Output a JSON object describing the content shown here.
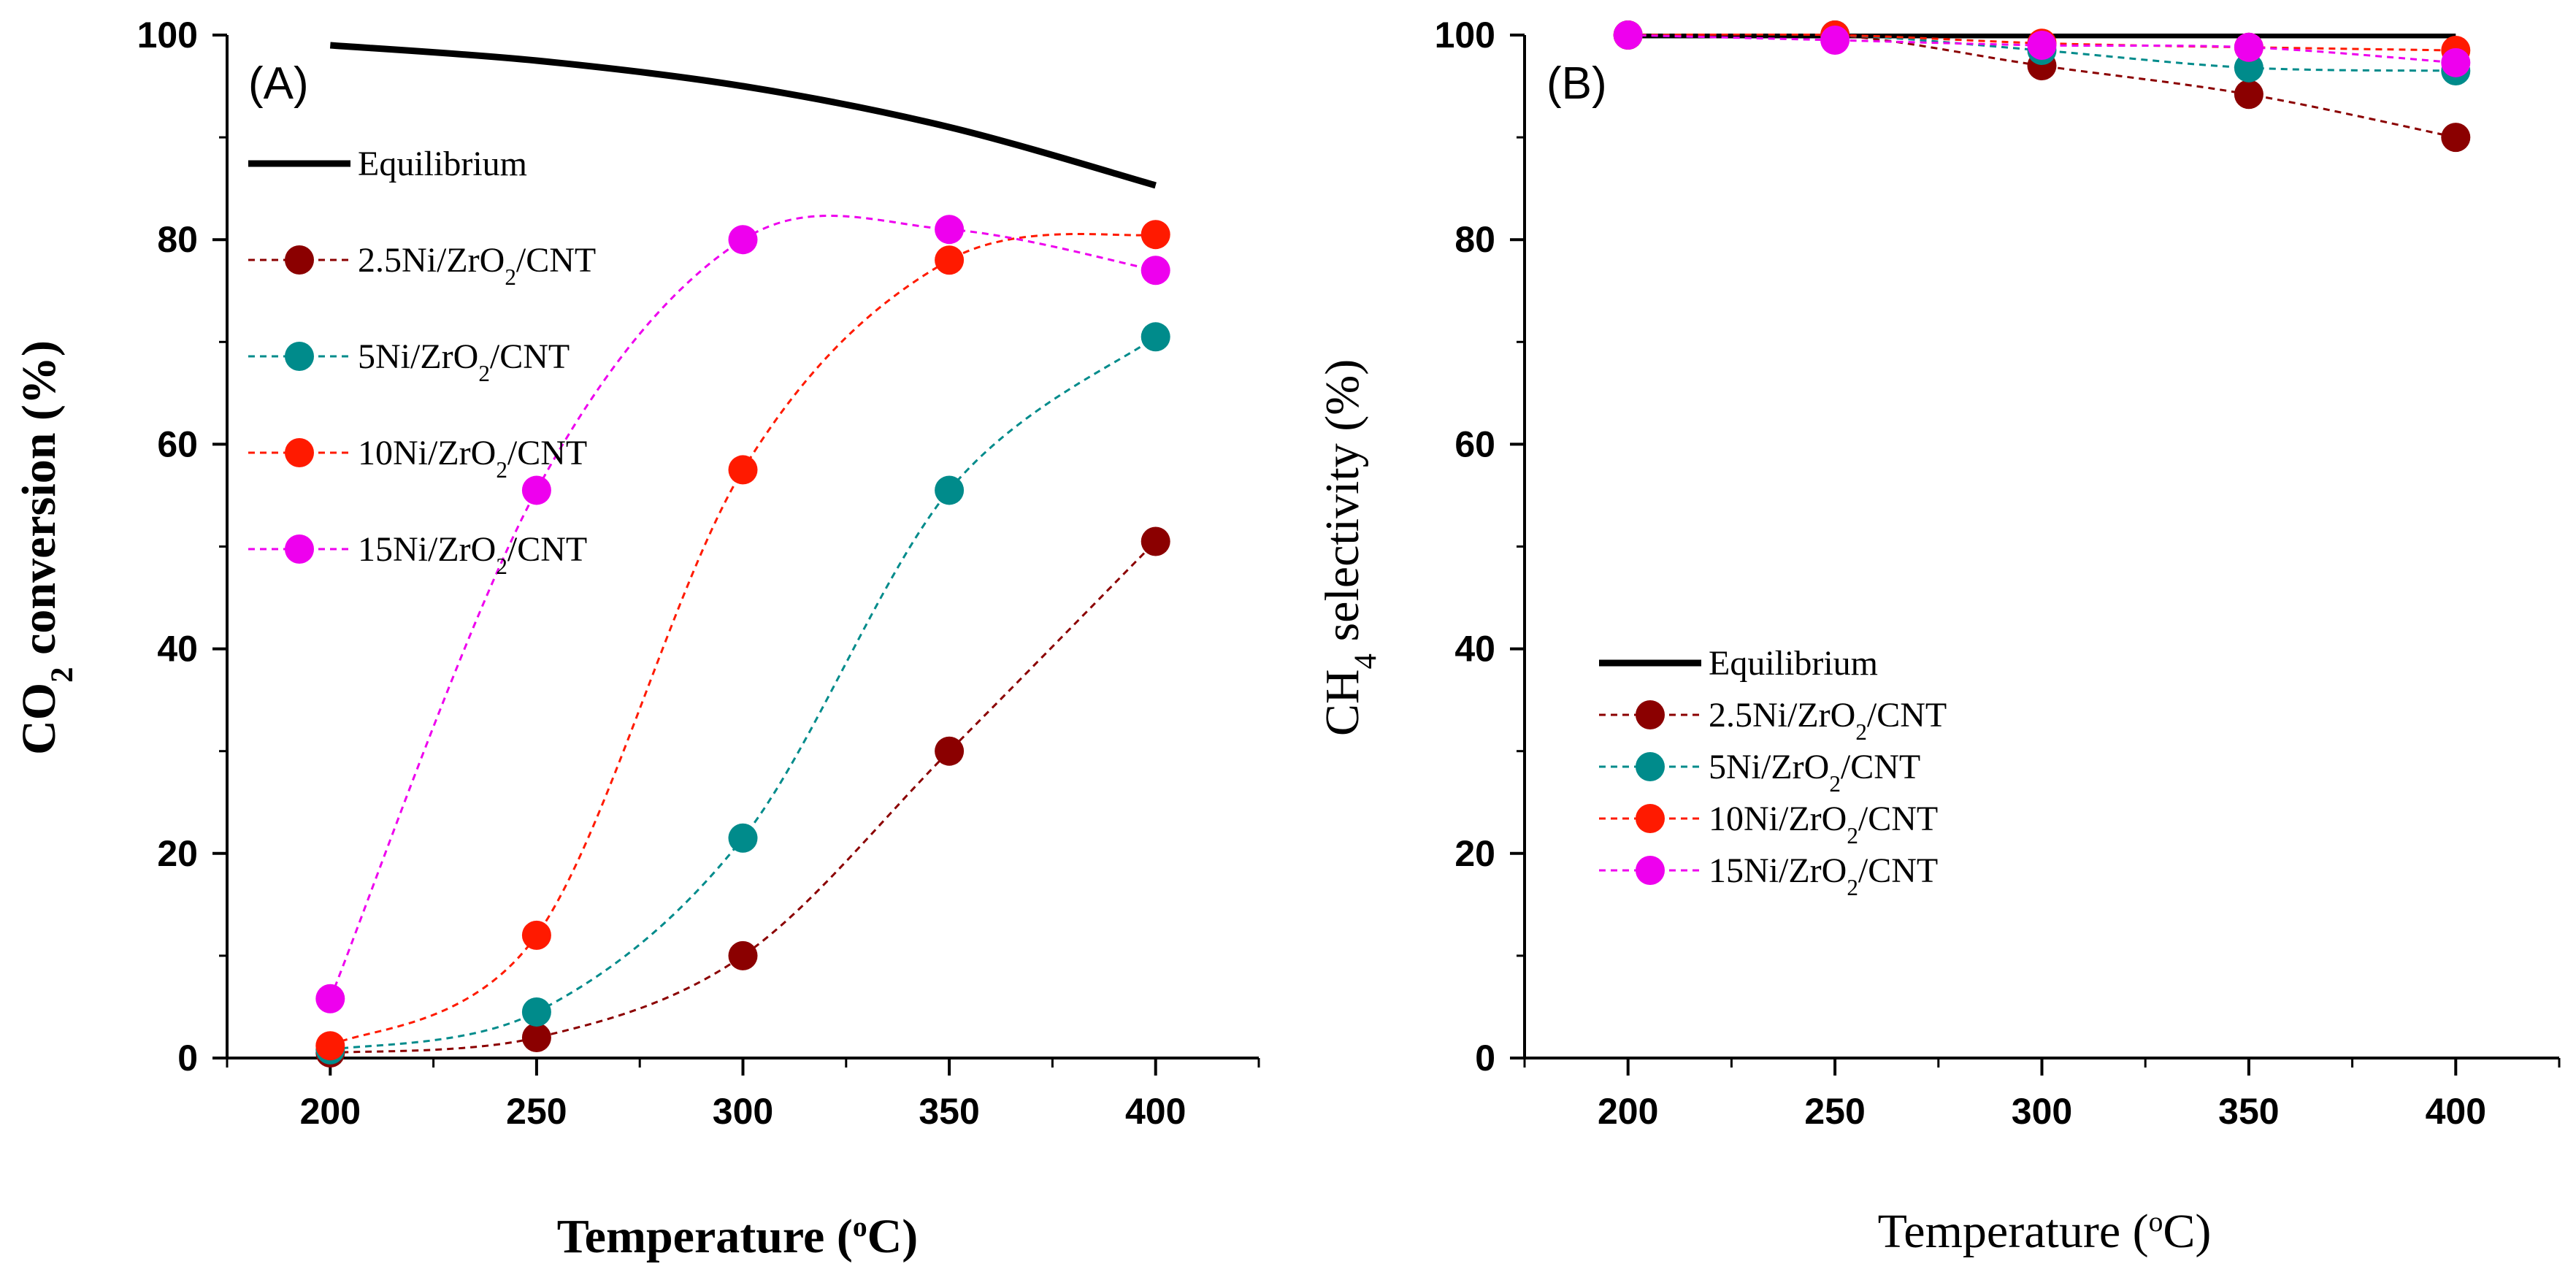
{
  "chart_data": [
    {
      "type": "line",
      "panel_label": "(A)",
      "xlabel": "Temperature (°C)",
      "ylabel": "CO2 conversion (%)",
      "ylabel_parts": {
        "pre": "CO",
        "sub": "2",
        "post": " conversion (%)"
      },
      "xlabel_parts": {
        "pre": "Temperature (",
        "sup": "o",
        "post": "C)"
      },
      "xlim": [
        175,
        425
      ],
      "ylim": [
        0,
        100
      ],
      "xticks": [
        200,
        250,
        300,
        350,
        400
      ],
      "yticks": [
        0,
        20,
        40,
        60,
        80,
        100
      ],
      "legend_position": "upper-left",
      "series": [
        {
          "name": "Equilibrium",
          "name_parts": {
            "pre": "Equilibrium",
            "sub": "",
            "post": ""
          },
          "style": "solid",
          "marker": false,
          "color": "#000000",
          "x": [
            200,
            250,
            300,
            350,
            400
          ],
          "values": [
            99.0,
            97.5,
            95.0,
            91.0,
            85.3
          ]
        },
        {
          "name": "2.5Ni/ZrO2/CNT",
          "name_parts": {
            "pre": "2.5Ni/ZrO",
            "sub": "2",
            "post": "/CNT"
          },
          "style": "dashed",
          "marker": true,
          "color": "#8b0000",
          "x": [
            200,
            250,
            300,
            350,
            400
          ],
          "values": [
            0.5,
            2.0,
            10.0,
            30.0,
            50.5
          ]
        },
        {
          "name": "5Ni/ZrO2/CNT",
          "name_parts": {
            "pre": "5Ni/ZrO",
            "sub": "2",
            "post": "/CNT"
          },
          "style": "dashed",
          "marker": true,
          "color": "#008b8b",
          "x": [
            200,
            250,
            300,
            350,
            400
          ],
          "values": [
            0.8,
            4.5,
            21.5,
            55.5,
            70.5
          ]
        },
        {
          "name": "10Ni/ZrO2/CNT",
          "name_parts": {
            "pre": "10Ni/ZrO",
            "sub": "2",
            "post": "/CNT"
          },
          "style": "dashed",
          "marker": true,
          "color": "#ff1a00",
          "x": [
            200,
            250,
            300,
            350,
            400
          ],
          "values": [
            1.2,
            12.0,
            57.5,
            78.0,
            80.5
          ]
        },
        {
          "name": "15Ni/ZrO2/CNT",
          "name_parts": {
            "pre": "15Ni/ZrO",
            "sub": "2",
            "post": "/CNT"
          },
          "style": "dashed",
          "marker": true,
          "color": "#ee00ee",
          "x": [
            200,
            250,
            300,
            350,
            400
          ],
          "values": [
            5.8,
            55.5,
            80.0,
            81.0,
            77.0
          ]
        }
      ]
    },
    {
      "type": "line",
      "panel_label": "(B)",
      "xlabel": "Temperature (°C)",
      "ylabel": "CH4 selectivity (%)",
      "ylabel_parts": {
        "pre": "CH",
        "sub": "4",
        "post": " selectivity (%)"
      },
      "xlabel_parts": {
        "pre": "Temperature (",
        "sup": "o",
        "post": "C)"
      },
      "xlim": [
        175,
        425
      ],
      "ylim": [
        0,
        100
      ],
      "xticks": [
        200,
        250,
        300,
        350,
        400
      ],
      "yticks": [
        0,
        20,
        40,
        60,
        80,
        100
      ],
      "legend_position": "center-left",
      "series": [
        {
          "name": "Equilibrium",
          "name_parts": {
            "pre": "Equilibrium",
            "sub": "",
            "post": ""
          },
          "style": "solid",
          "marker": false,
          "color": "#000000",
          "x": [
            200,
            250,
            300,
            350,
            400
          ],
          "values": [
            100,
            100,
            100,
            100,
            100
          ]
        },
        {
          "name": "2.5Ni/ZrO2/CNT",
          "name_parts": {
            "pre": "2.5Ni/ZrO",
            "sub": "2",
            "post": "/CNT"
          },
          "style": "dashed",
          "marker": true,
          "color": "#8b0000",
          "x": [
            200,
            250,
            300,
            350,
            400
          ],
          "values": [
            100,
            100,
            97.0,
            94.2,
            90.0
          ]
        },
        {
          "name": "5Ni/ZrO2/CNT",
          "name_parts": {
            "pre": "5Ni/ZrO",
            "sub": "2",
            "post": "/CNT"
          },
          "style": "dashed",
          "marker": true,
          "color": "#008b8b",
          "x": [
            200,
            250,
            300,
            350,
            400
          ],
          "values": [
            100,
            100,
            98.5,
            96.8,
            96.5
          ]
        },
        {
          "name": "10Ni/ZrO2/CNT",
          "name_parts": {
            "pre": "10Ni/ZrO",
            "sub": "2",
            "post": "/CNT"
          },
          "style": "dashed",
          "marker": true,
          "color": "#ff1a00",
          "x": [
            200,
            250,
            300,
            350,
            400
          ],
          "values": [
            100,
            100,
            99.2,
            98.8,
            98.5
          ]
        },
        {
          "name": "15Ni/ZrO2/CNT",
          "name_parts": {
            "pre": "15Ni/ZrO",
            "sub": "2",
            "post": "/CNT"
          },
          "style": "dashed",
          "marker": true,
          "color": "#ee00ee",
          "x": [
            200,
            250,
            300,
            350,
            400
          ],
          "values": [
            100,
            99.5,
            99.0,
            98.8,
            97.3
          ]
        }
      ]
    }
  ]
}
